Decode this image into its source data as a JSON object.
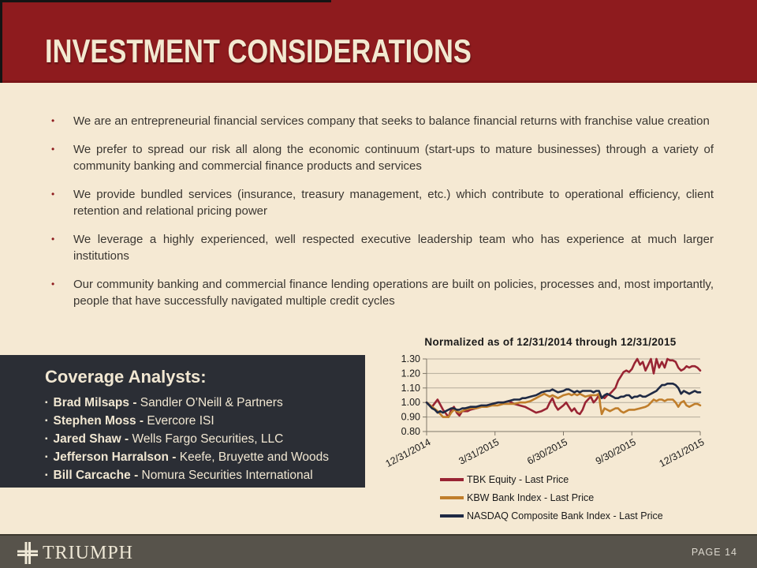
{
  "slide": {
    "title": "INVESTMENT CONSIDERATIONS",
    "bullet_glyph": "•",
    "bullets": [
      "We are an entrepreneurial financial services company that seeks to balance financial returns with franchise value creation",
      "We prefer to spread our risk all along the economic continuum (start-ups to mature businesses) through a variety of community banking and commercial finance products and services",
      "We provide bundled services (insurance, treasury management, etc.) which contribute to operational efficiency, client retention and relational pricing power",
      "We leverage a highly experienced, well respected executive leadership team who has experience at much larger institutions",
      "Our community banking and commercial finance lending operations are built on policies, processes and, most importantly, people that have successfully navigated multiple credit cycles"
    ],
    "coverage": {
      "heading": "Coverage Analysts:",
      "item_glyph": "▪",
      "analysts": [
        {
          "name": "Brad Milsaps -",
          "firm": "Sandler O’Neill & Partners"
        },
        {
          "name": "Stephen Moss -",
          "firm": "Evercore ISI"
        },
        {
          "name": "Jared Shaw -",
          "firm": "Wells Fargo Securities, LLC"
        },
        {
          "name": "Jefferson Harralson -",
          "firm": "Keefe, Bruyette and Woods"
        },
        {
          "name": "Bill Carcache -",
          "firm": "Nomura Securities International"
        }
      ]
    },
    "footer": {
      "brand": "TRIUMPH",
      "page": "PAGE 14"
    }
  },
  "colors": {
    "header_maroon": "#8E1B1E",
    "background_cream": "#F5E9D3",
    "coverage_box": "#2B2E35",
    "footer_gray": "#57534B",
    "bullet_marker": "#8E1B1E"
  },
  "chart_data": {
    "type": "line",
    "title": "Normalized as of 12/31/2014 through 12/31/2015",
    "legend_position": "bottom-left",
    "grid": true,
    "ylim": [
      0.8,
      1.3
    ],
    "y_tick_labels": [
      "1.30",
      "1.20",
      "1.10",
      "1.00",
      "0.90",
      "0.80"
    ],
    "x_tick_labels": [
      "12/31/2014",
      "3/31/2015",
      "6/30/2015",
      "9/30/2015",
      "12/31/2015"
    ],
    "series": [
      {
        "name": "TBK Equity - Last Price",
        "color": "#992433",
        "points": [
          [
            0,
            1.0
          ],
          [
            0.02,
            0.97
          ],
          [
            0.04,
            1.02
          ],
          [
            0.06,
            0.95
          ],
          [
            0.08,
            0.9
          ],
          [
            0.09,
            0.95
          ],
          [
            0.1,
            0.97
          ],
          [
            0.11,
            0.93
          ],
          [
            0.12,
            0.91
          ],
          [
            0.13,
            0.94
          ],
          [
            0.15,
            0.94
          ],
          [
            0.16,
            0.95
          ],
          [
            0.18,
            0.96
          ],
          [
            0.2,
            0.97
          ],
          [
            0.22,
            0.98
          ],
          [
            0.24,
            0.99
          ],
          [
            0.26,
            1.0
          ],
          [
            0.28,
            1.0
          ],
          [
            0.3,
            1.01
          ],
          [
            0.32,
            0.99
          ],
          [
            0.34,
            0.98
          ],
          [
            0.36,
            0.97
          ],
          [
            0.38,
            0.95
          ],
          [
            0.4,
            0.93
          ],
          [
            0.42,
            0.94
          ],
          [
            0.44,
            0.96
          ],
          [
            0.45,
            1.0
          ],
          [
            0.46,
            1.03
          ],
          [
            0.47,
            0.98
          ],
          [
            0.48,
            0.95
          ],
          [
            0.5,
            0.98
          ],
          [
            0.51,
            1.0
          ],
          [
            0.52,
            0.97
          ],
          [
            0.53,
            0.94
          ],
          [
            0.54,
            0.96
          ],
          [
            0.55,
            0.93
          ],
          [
            0.56,
            0.92
          ],
          [
            0.57,
            0.95
          ],
          [
            0.58,
            1.0
          ],
          [
            0.59,
            1.02
          ],
          [
            0.6,
            1.04
          ],
          [
            0.61,
            1.0
          ],
          [
            0.62,
            1.02
          ],
          [
            0.63,
            1.05
          ],
          [
            0.64,
            1.04
          ],
          [
            0.65,
            1.03
          ],
          [
            0.66,
            1.05
          ],
          [
            0.67,
            1.06
          ],
          [
            0.68,
            1.08
          ],
          [
            0.69,
            1.1
          ],
          [
            0.7,
            1.15
          ],
          [
            0.71,
            1.18
          ],
          [
            0.72,
            1.21
          ],
          [
            0.73,
            1.22
          ],
          [
            0.74,
            1.21
          ],
          [
            0.75,
            1.23
          ],
          [
            0.76,
            1.27
          ],
          [
            0.77,
            1.3
          ],
          [
            0.78,
            1.26
          ],
          [
            0.79,
            1.28
          ],
          [
            0.8,
            1.22
          ],
          [
            0.81,
            1.26
          ],
          [
            0.82,
            1.3
          ],
          [
            0.83,
            1.2
          ],
          [
            0.84,
            1.3
          ],
          [
            0.85,
            1.24
          ],
          [
            0.86,
            1.28
          ],
          [
            0.87,
            1.24
          ],
          [
            0.88,
            1.3
          ],
          [
            0.89,
            1.29
          ],
          [
            0.9,
            1.29
          ],
          [
            0.91,
            1.28
          ],
          [
            0.92,
            1.24
          ],
          [
            0.93,
            1.22
          ],
          [
            0.94,
            1.23
          ],
          [
            0.95,
            1.25
          ],
          [
            0.96,
            1.24
          ],
          [
            0.97,
            1.25
          ],
          [
            0.98,
            1.25
          ],
          [
            0.99,
            1.24
          ],
          [
            1.0,
            1.22
          ]
        ]
      },
      {
        "name": "KBW Bank Index - Last Price",
        "color": "#C07E2B",
        "points": [
          [
            0,
            1.0
          ],
          [
            0.02,
            0.97
          ],
          [
            0.04,
            0.94
          ],
          [
            0.05,
            0.92
          ],
          [
            0.06,
            0.9
          ],
          [
            0.08,
            0.9
          ],
          [
            0.09,
            0.93
          ],
          [
            0.1,
            0.95
          ],
          [
            0.11,
            0.94
          ],
          [
            0.12,
            0.93
          ],
          [
            0.13,
            0.94
          ],
          [
            0.14,
            0.95
          ],
          [
            0.16,
            0.96
          ],
          [
            0.18,
            0.96
          ],
          [
            0.2,
            0.97
          ],
          [
            0.22,
            0.97
          ],
          [
            0.24,
            0.98
          ],
          [
            0.26,
            0.98
          ],
          [
            0.28,
            0.99
          ],
          [
            0.3,
            0.99
          ],
          [
            0.32,
            0.99
          ],
          [
            0.34,
            1.0
          ],
          [
            0.36,
            1.0
          ],
          [
            0.38,
            1.01
          ],
          [
            0.4,
            1.03
          ],
          [
            0.42,
            1.05
          ],
          [
            0.43,
            1.06
          ],
          [
            0.44,
            1.05
          ],
          [
            0.45,
            1.04
          ],
          [
            0.46,
            1.05
          ],
          [
            0.47,
            1.04
          ],
          [
            0.48,
            1.03
          ],
          [
            0.5,
            1.05
          ],
          [
            0.52,
            1.06
          ],
          [
            0.53,
            1.05
          ],
          [
            0.54,
            1.06
          ],
          [
            0.55,
            1.05
          ],
          [
            0.56,
            1.06
          ],
          [
            0.57,
            1.05
          ],
          [
            0.58,
            1.04
          ],
          [
            0.6,
            1.05
          ],
          [
            0.62,
            1.05
          ],
          [
            0.63,
            1.06
          ],
          [
            0.635,
            0.98
          ],
          [
            0.64,
            0.92
          ],
          [
            0.65,
            0.96
          ],
          [
            0.66,
            0.95
          ],
          [
            0.67,
            0.94
          ],
          [
            0.68,
            0.95
          ],
          [
            0.69,
            0.96
          ],
          [
            0.7,
            0.96
          ],
          [
            0.71,
            0.94
          ],
          [
            0.72,
            0.93
          ],
          [
            0.73,
            0.94
          ],
          [
            0.74,
            0.95
          ],
          [
            0.76,
            0.95
          ],
          [
            0.78,
            0.96
          ],
          [
            0.8,
            0.97
          ],
          [
            0.81,
            0.98
          ],
          [
            0.82,
            1.0
          ],
          [
            0.83,
            1.02
          ],
          [
            0.84,
            1.01
          ],
          [
            0.85,
            1.02
          ],
          [
            0.86,
            1.02
          ],
          [
            0.87,
            1.01
          ],
          [
            0.88,
            1.02
          ],
          [
            0.89,
            1.02
          ],
          [
            0.9,
            1.02
          ],
          [
            0.91,
            1.0
          ],
          [
            0.92,
            0.97
          ],
          [
            0.93,
            1.0
          ],
          [
            0.94,
            1.01
          ],
          [
            0.95,
            0.98
          ],
          [
            0.96,
            0.97
          ],
          [
            0.97,
            0.98
          ],
          [
            0.98,
            0.99
          ],
          [
            0.99,
            0.99
          ],
          [
            1.0,
            0.98
          ]
        ]
      },
      {
        "name": "NASDAQ Composite Bank Index - Last Price",
        "color": "#1F2A44",
        "points": [
          [
            0,
            1.0
          ],
          [
            0.01,
            0.98
          ],
          [
            0.02,
            0.96
          ],
          [
            0.03,
            0.95
          ],
          [
            0.04,
            0.93
          ],
          [
            0.05,
            0.94
          ],
          [
            0.06,
            0.93
          ],
          [
            0.07,
            0.94
          ],
          [
            0.08,
            0.95
          ],
          [
            0.09,
            0.96
          ],
          [
            0.1,
            0.96
          ],
          [
            0.11,
            0.95
          ],
          [
            0.12,
            0.95
          ],
          [
            0.13,
            0.96
          ],
          [
            0.14,
            0.96
          ],
          [
            0.16,
            0.97
          ],
          [
            0.18,
            0.97
          ],
          [
            0.2,
            0.98
          ],
          [
            0.22,
            0.98
          ],
          [
            0.24,
            0.99
          ],
          [
            0.26,
            1.0
          ],
          [
            0.28,
            1.0
          ],
          [
            0.3,
            1.01
          ],
          [
            0.32,
            1.02
          ],
          [
            0.34,
            1.02
          ],
          [
            0.35,
            1.03
          ],
          [
            0.36,
            1.03
          ],
          [
            0.38,
            1.04
          ],
          [
            0.4,
            1.05
          ],
          [
            0.41,
            1.06
          ],
          [
            0.42,
            1.07
          ],
          [
            0.44,
            1.08
          ],
          [
            0.45,
            1.08
          ],
          [
            0.46,
            1.09
          ],
          [
            0.47,
            1.08
          ],
          [
            0.48,
            1.07
          ],
          [
            0.5,
            1.08
          ],
          [
            0.51,
            1.09
          ],
          [
            0.52,
            1.09
          ],
          [
            0.53,
            1.08
          ],
          [
            0.54,
            1.07
          ],
          [
            0.55,
            1.08
          ],
          [
            0.56,
            1.07
          ],
          [
            0.57,
            1.08
          ],
          [
            0.58,
            1.08
          ],
          [
            0.6,
            1.08
          ],
          [
            0.61,
            1.07
          ],
          [
            0.62,
            1.08
          ],
          [
            0.63,
            1.08
          ],
          [
            0.64,
            1.03
          ],
          [
            0.65,
            1.05
          ],
          [
            0.66,
            1.06
          ],
          [
            0.67,
            1.05
          ],
          [
            0.68,
            1.04
          ],
          [
            0.69,
            1.03
          ],
          [
            0.7,
            1.03
          ],
          [
            0.71,
            1.04
          ],
          [
            0.72,
            1.04
          ],
          [
            0.73,
            1.05
          ],
          [
            0.74,
            1.05
          ],
          [
            0.75,
            1.03
          ],
          [
            0.76,
            1.04
          ],
          [
            0.77,
            1.04
          ],
          [
            0.78,
            1.05
          ],
          [
            0.79,
            1.04
          ],
          [
            0.8,
            1.04
          ],
          [
            0.81,
            1.05
          ],
          [
            0.82,
            1.06
          ],
          [
            0.83,
            1.07
          ],
          [
            0.84,
            1.08
          ],
          [
            0.85,
            1.1
          ],
          [
            0.86,
            1.12
          ],
          [
            0.87,
            1.12
          ],
          [
            0.88,
            1.13
          ],
          [
            0.89,
            1.13
          ],
          [
            0.9,
            1.13
          ],
          [
            0.91,
            1.12
          ],
          [
            0.92,
            1.1
          ],
          [
            0.93,
            1.06
          ],
          [
            0.94,
            1.08
          ],
          [
            0.95,
            1.07
          ],
          [
            0.96,
            1.06
          ],
          [
            0.97,
            1.07
          ],
          [
            0.98,
            1.08
          ],
          [
            0.99,
            1.07
          ],
          [
            1.0,
            1.07
          ]
        ]
      }
    ]
  }
}
